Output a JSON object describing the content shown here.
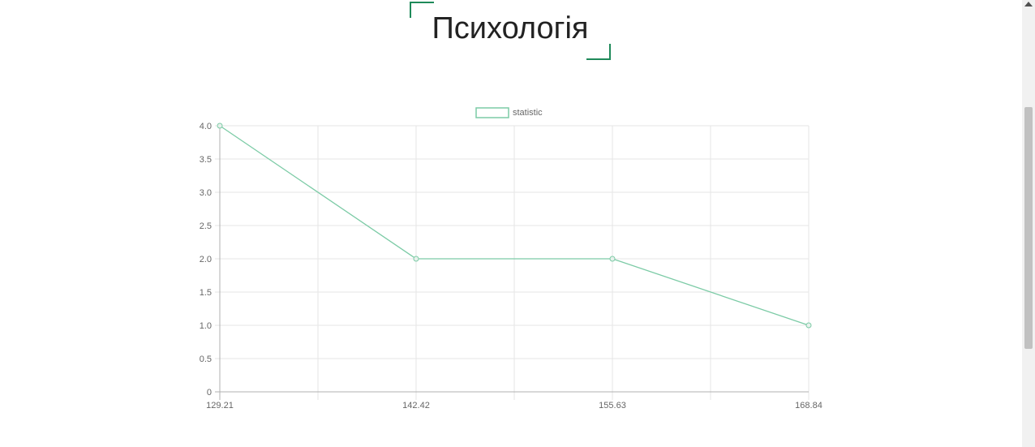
{
  "page": {
    "title": "Психологія"
  },
  "chart_data": {
    "type": "line",
    "x": [
      129.21,
      142.42,
      155.63,
      168.84
    ],
    "series": [
      {
        "name": "statistic",
        "values": [
          4,
          2,
          2,
          1
        ]
      }
    ],
    "xticks": [
      "129.21",
      "142.42",
      "155.63",
      "168.84"
    ],
    "yticks": [
      "4.0",
      "3.5",
      "3.0",
      "2.5",
      "2.0",
      "1.5",
      "1.0",
      "0.5",
      "0"
    ],
    "ylim": [
      0,
      4
    ],
    "grid": true,
    "legend": "top-center",
    "colors": {
      "line": "#7ccba6",
      "point_fill": "#e8f1ec",
      "grid": "#e6e6e6",
      "axis": "#b0b0b0",
      "tick_text": "#666666"
    }
  }
}
